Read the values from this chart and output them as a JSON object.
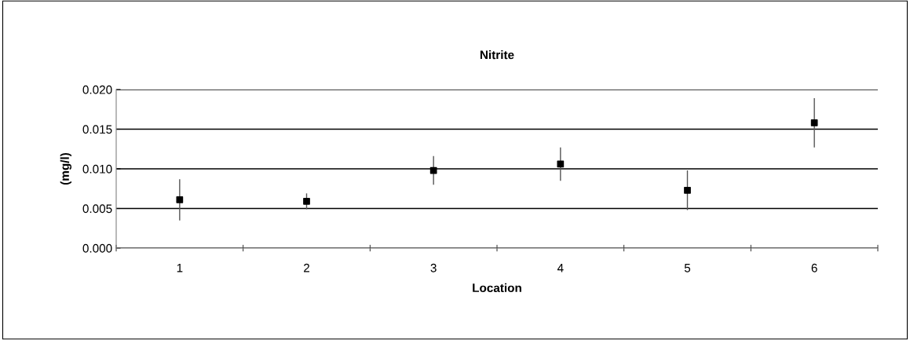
{
  "chart_data": {
    "type": "scatter",
    "title": "Nitrite",
    "xlabel": "Location",
    "ylabel": "(mg/l)",
    "categories": [
      "1",
      "2",
      "3",
      "4",
      "5",
      "6"
    ],
    "values": [
      0.0061,
      0.0059,
      0.0098,
      0.0106,
      0.0073,
      0.0158
    ],
    "errors": [
      0.0026,
      0.001,
      0.0018,
      0.0021,
      0.0025,
      0.0031
    ],
    "color": "#000000",
    "marker": "square",
    "ylim": [
      0,
      0.02
    ],
    "yticks": [
      {
        "value": 0,
        "label": "0.000"
      },
      {
        "value": 0.005,
        "label": "0.005"
      },
      {
        "value": 0.01,
        "label": "0.010"
      },
      {
        "value": 0.015,
        "label": "0.015"
      },
      {
        "value": 0.02,
        "label": "0.020"
      }
    ],
    "grid": "y"
  }
}
